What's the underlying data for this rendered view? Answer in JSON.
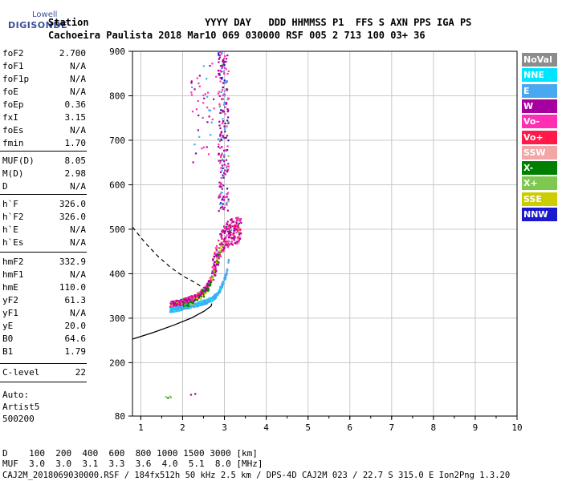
{
  "logo": {
    "line1": "Lowell",
    "line2": "DIGISONDE"
  },
  "header": {
    "labels_line": "Station                    YYYY DAY   DDD HHMMSS P1  FFS S AXN PPS IGA PS",
    "values_line": "Cachoeira Paulista 2018 Mar10 069 030000 RSF 005 2 713 100 03+ 36"
  },
  "params": [
    {
      "name": "foF2",
      "value": "2.700"
    },
    {
      "name": "foF1",
      "value": "N/A"
    },
    {
      "name": "foF1p",
      "value": "N/A"
    },
    {
      "name": "foE",
      "value": "N/A"
    },
    {
      "name": "foEp",
      "value": "0.36"
    },
    {
      "name": "fxI",
      "value": "3.15"
    },
    {
      "name": "foEs",
      "value": "N/A"
    },
    {
      "name": "fmin",
      "value": "1.70"
    },
    {
      "name": "MUF(D)",
      "value": "8.05"
    },
    {
      "name": "M(D)",
      "value": "2.98"
    },
    {
      "name": "D",
      "value": "N/A"
    },
    {
      "name": "h`F",
      "value": "326.0"
    },
    {
      "name": "h`F2",
      "value": "326.0"
    },
    {
      "name": "h`E",
      "value": "N/A"
    },
    {
      "name": "h`Es",
      "value": "N/A"
    },
    {
      "name": "hmF2",
      "value": "332.9"
    },
    {
      "name": "hmF1",
      "value": "N/A"
    },
    {
      "name": "hmE",
      "value": "110.0"
    },
    {
      "name": "yF2",
      "value": "61.3"
    },
    {
      "name": "yF1",
      "value": "N/A"
    },
    {
      "name": "yE",
      "value": "20.0"
    },
    {
      "name": "B0",
      "value": "64.6"
    },
    {
      "name": "B1",
      "value": "1.79"
    },
    {
      "name": "C-level",
      "value": "22"
    }
  ],
  "auto": {
    "label": "Auto:",
    "artist": "Artist5",
    "version": "500200"
  },
  "bottom": {
    "d_line": "D    100  200  400  600  800 1000 1500 3000 [km]",
    "muf_line": "MUF  3.0  3.0  3.1  3.3  3.6  4.0  5.1  8.0 [MHz]",
    "file_line": "CAJ2M_2018069030000.RSF / 184fx512h 50 kHz 2.5 km / DPS-4D CAJ2M 023 / 22.7 S 315.0 E Ion2Png 1.3.20"
  },
  "legend": [
    {
      "label": "NoVal",
      "color": "#8c8c8c"
    },
    {
      "label": "NNE",
      "color": "#00e5ff"
    },
    {
      "label": "E",
      "color": "#4aa8f0"
    },
    {
      "label": "W",
      "color": "#a6009e"
    },
    {
      "label": "Vo-",
      "color": "#ff2fb4"
    },
    {
      "label": "Vo+",
      "color": "#ff1a4a"
    },
    {
      "label": "SSW",
      "color": "#f4a6a6"
    },
    {
      "label": "X-",
      "color": "#008000"
    },
    {
      "label": "X+",
      "color": "#7ec850"
    },
    {
      "label": "SSE",
      "color": "#cccc00"
    },
    {
      "label": "NNW",
      "color": "#1a1acc"
    }
  ],
  "chart_data": {
    "type": "scatter",
    "xlim": [
      0.8,
      10
    ],
    "ylim": [
      80,
      900
    ],
    "x_ticks": [
      1,
      2,
      3,
      4,
      5,
      6,
      7,
      8,
      9,
      10
    ],
    "y_ticks": [
      80,
      200,
      300,
      400,
      500,
      600,
      700,
      800,
      900
    ],
    "grid": true,
    "legend_position": "right",
    "o_trace": [
      {
        "f": 1.7,
        "h": 330
      },
      {
        "f": 1.9,
        "h": 334
      },
      {
        "f": 2.1,
        "h": 339
      },
      {
        "f": 2.3,
        "h": 346
      },
      {
        "f": 2.5,
        "h": 360
      },
      {
        "f": 2.6,
        "h": 372
      },
      {
        "f": 2.7,
        "h": 395
      },
      {
        "f": 2.8,
        "h": 430
      },
      {
        "f": 2.9,
        "h": 460
      },
      {
        "f": 3.0,
        "h": 480
      },
      {
        "f": 3.1,
        "h": 490
      },
      {
        "f": 3.2,
        "h": 495
      },
      {
        "f": 3.3,
        "h": 498
      },
      {
        "f": 3.4,
        "h": 500
      }
    ],
    "x_trace": [
      {
        "f": 1.7,
        "h": 318
      },
      {
        "f": 1.9,
        "h": 321
      },
      {
        "f": 2.1,
        "h": 326
      },
      {
        "f": 2.3,
        "h": 330
      },
      {
        "f": 2.5,
        "h": 335
      },
      {
        "f": 2.7,
        "h": 342
      },
      {
        "f": 2.85,
        "h": 355
      },
      {
        "f": 2.95,
        "h": 375
      },
      {
        "f": 3.05,
        "h": 400
      },
      {
        "f": 3.1,
        "h": 430
      }
    ],
    "vertical_streak": [
      {
        "f": 2.9,
        "h": 560
      },
      {
        "f": 2.95,
        "h": 620
      },
      {
        "f": 3.0,
        "h": 700
      },
      {
        "f": 3.0,
        "h": 760
      },
      {
        "f": 2.95,
        "h": 820
      },
      {
        "f": 2.9,
        "h": 870
      },
      {
        "f": 2.75,
        "h": 840
      },
      {
        "f": 2.7,
        "h": 780
      },
      {
        "f": 2.6,
        "h": 740
      },
      {
        "f": 2.5,
        "h": 700
      },
      {
        "f": 2.4,
        "h": 680
      },
      {
        "f": 2.2,
        "h": 690
      }
    ],
    "low_echoes": [
      {
        "f": 1.6,
        "h": 123
      },
      {
        "f": 1.7,
        "h": 124
      },
      {
        "f": 2.2,
        "h": 128
      },
      {
        "f": 2.3,
        "h": 130
      }
    ],
    "profile_solid": [
      {
        "f": 0.8,
        "h": 253
      },
      {
        "f": 1.3,
        "h": 268
      },
      {
        "f": 1.8,
        "h": 285
      },
      {
        "f": 2.2,
        "h": 300
      },
      {
        "f": 2.5,
        "h": 315
      },
      {
        "f": 2.68,
        "h": 327
      },
      {
        "f": 2.7,
        "h": 333
      }
    ],
    "profile_dashed": [
      {
        "f": 0.8,
        "h": 505
      },
      {
        "f": 1.1,
        "h": 470
      },
      {
        "f": 1.4,
        "h": 440
      },
      {
        "f": 1.7,
        "h": 415
      },
      {
        "f": 2.0,
        "h": 395
      },
      {
        "f": 2.3,
        "h": 380
      },
      {
        "f": 2.5,
        "h": 368
      }
    ]
  }
}
